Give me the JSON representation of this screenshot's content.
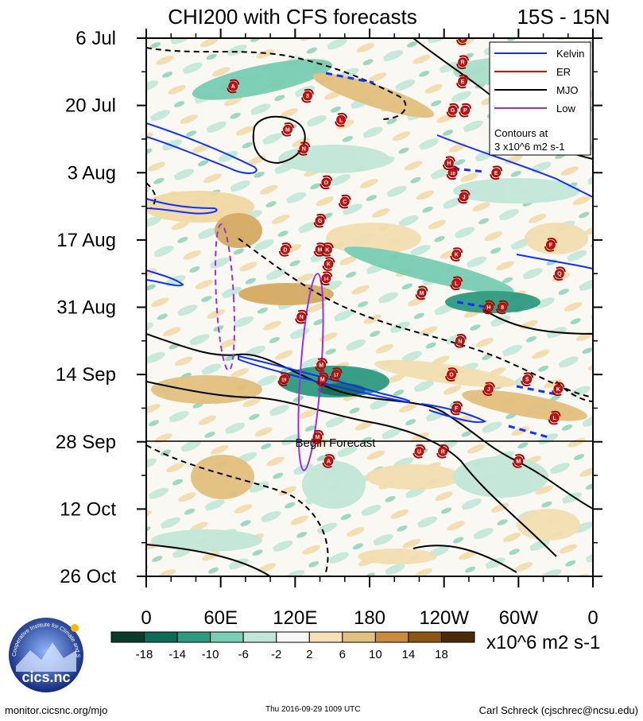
{
  "chart_data": {
    "type": "heatmap",
    "title": "CHI200 with CFS forecasts",
    "region": "15S - 15N",
    "y_ticks": [
      "6 Jul",
      "20 Jul",
      "3 Aug",
      "17 Aug",
      "31 Aug",
      "14 Sep",
      "28 Sep",
      "12 Oct",
      "26 Oct"
    ],
    "x_ticks": [
      "0",
      "60E",
      "120E",
      "180",
      "120W",
      "60W",
      "0"
    ],
    "x_range_deg_east": [
      0,
      360
    ],
    "y_range_dates": [
      "6 Jul",
      "26 Oct"
    ],
    "forecast_label": "Begin Forecast",
    "forecast_start": "28 Sep",
    "colorbar": {
      "ticks": [
        "-18",
        "-14",
        "-10",
        "-6",
        "-2",
        "2",
        "6",
        "10",
        "14",
        "18"
      ],
      "units": "x10^6 m2 s-1",
      "colors": [
        "#0b3b2a",
        "#0e6b55",
        "#2e9a80",
        "#79cdb3",
        "#c1e7d9",
        "#f7f7f7",
        "#f5e1b5",
        "#e2c07f",
        "#c98c3c",
        "#8d5616",
        "#4a2a08"
      ]
    },
    "legend": [
      {
        "label": "Kelvin",
        "color": "#1030ff"
      },
      {
        "label": "ER",
        "color": "#ff0000"
      },
      {
        "label": "MJO",
        "color": "#000000"
      },
      {
        "label": "Low",
        "color": "#9a30e0"
      }
    ],
    "contour_note_line1": "Contours at",
    "contour_note_line2": "3 x10^6 m2 s-1",
    "storms": [
      {
        "name": "G",
        "lon": 255,
        "day": 0
      },
      {
        "name": "R",
        "lon": 255,
        "day": 5
      },
      {
        "name": "E",
        "lon": 255,
        "day": 9
      },
      {
        "name": "A",
        "lon": 70,
        "day": 10
      },
      {
        "name": "3",
        "lon": 130,
        "day": 12
      },
      {
        "name": "G",
        "lon": 247,
        "day": 15
      },
      {
        "name": "P",
        "lon": 257,
        "day": 15
      },
      {
        "name": "L",
        "lon": 157,
        "day": 17
      },
      {
        "name": "M",
        "lon": 114,
        "day": 19
      },
      {
        "name": "N",
        "lon": 127,
        "day": 23
      },
      {
        "name": "H",
        "lon": 244,
        "day": 26
      },
      {
        "name": "10",
        "lon": 247,
        "day": 28
      },
      {
        "name": "E",
        "lon": 282,
        "day": 28
      },
      {
        "name": "O",
        "lon": 145,
        "day": 30
      },
      {
        "name": "J",
        "lon": 256,
        "day": 33
      },
      {
        "name": "C",
        "lon": 160,
        "day": 34
      },
      {
        "name": "G",
        "lon": 140,
        "day": 38
      },
      {
        "name": "D",
        "lon": 112,
        "day": 44
      },
      {
        "name": "M",
        "lon": 140,
        "day": 44
      },
      {
        "name": "K",
        "lon": 146,
        "day": 44
      },
      {
        "name": "F",
        "lon": 326,
        "day": 43
      },
      {
        "name": "K",
        "lon": 250,
        "day": 45
      },
      {
        "name": "K",
        "lon": 147,
        "day": 47
      },
      {
        "name": "Q",
        "lon": 333,
        "day": 49
      },
      {
        "name": "14",
        "lon": 145,
        "day": 50
      },
      {
        "name": "L",
        "lon": 250,
        "day": 51
      },
      {
        "name": "M",
        "lon": 222,
        "day": 53
      },
      {
        "name": "H",
        "lon": 276,
        "day": 56
      },
      {
        "name": "8",
        "lon": 287,
        "day": 56
      },
      {
        "name": "N",
        "lon": 125,
        "day": 58
      },
      {
        "name": "N",
        "lon": 253,
        "day": 63
      },
      {
        "name": "M",
        "lon": 141,
        "day": 68
      },
      {
        "name": "O",
        "lon": 246,
        "day": 70
      },
      {
        "name": "17",
        "lon": 153,
        "day": 70
      },
      {
        "name": "19",
        "lon": 111,
        "day": 71
      },
      {
        "name": "M",
        "lon": 142,
        "day": 71
      },
      {
        "name": "S",
        "lon": 307,
        "day": 71
      },
      {
        "name": "J",
        "lon": 276,
        "day": 73
      },
      {
        "name": "K",
        "lon": 332,
        "day": 73
      },
      {
        "name": "F",
        "lon": 250,
        "day": 77
      },
      {
        "name": "L",
        "lon": 329,
        "day": 79
      },
      {
        "name": "M",
        "lon": 138,
        "day": 83
      },
      {
        "name": "U",
        "lon": 220,
        "day": 86
      },
      {
        "name": "R",
        "lon": 239,
        "day": 86
      },
      {
        "name": "A",
        "lon": 147,
        "day": 88
      },
      {
        "name": "M",
        "lon": 300,
        "day": 88
      }
    ]
  },
  "footer": {
    "left": "monitor.cicsnc.org/mjo",
    "center": "Thu 2016-09-29 1009 UTC",
    "right": "Carl Schreck (cjschrec@ncsu.edu)",
    "logo_text": "cics.nc",
    "logo_ring_text": "Cooperative Institute for Climate and Satellites"
  }
}
